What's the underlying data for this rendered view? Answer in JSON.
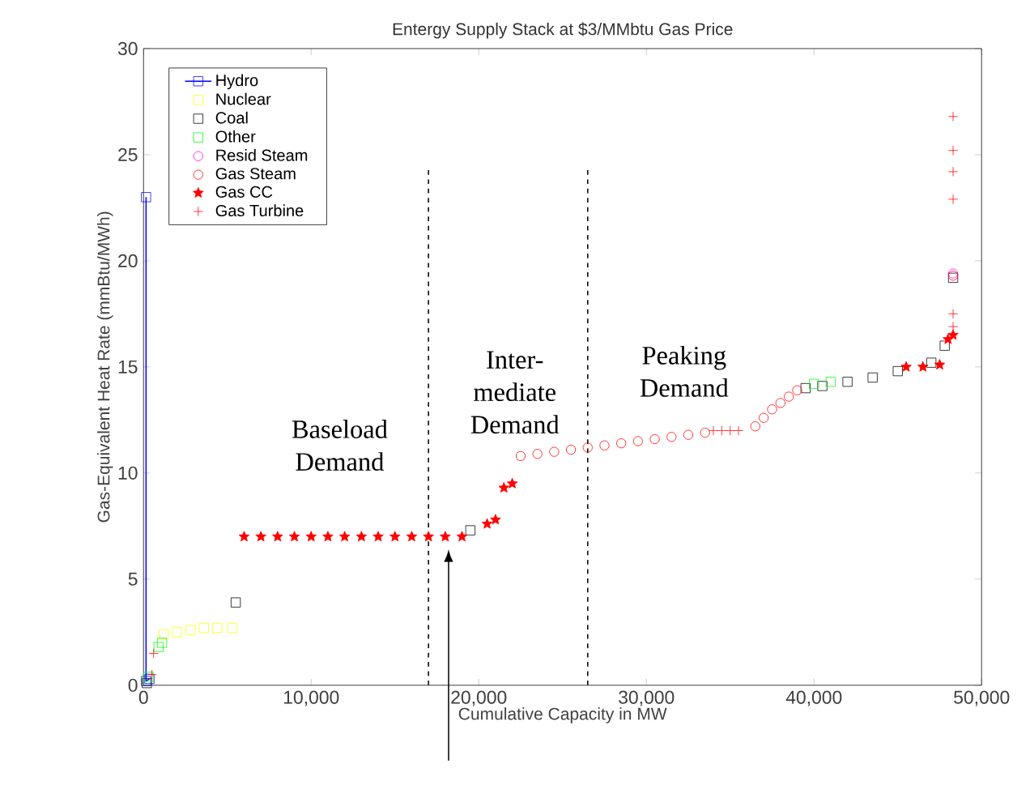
{
  "chart_data": {
    "type": "scatter",
    "title": "Entergy Supply Stack at $3/MMbtu Gas Price",
    "xlabel": "Cumulative Capacity in MW",
    "ylabel": "Gas-Equivalent Heat Rate (mmBtu/MWh)",
    "xlim": [
      0,
      50000
    ],
    "ylim": [
      0,
      30
    ],
    "xticks": [
      0,
      {
        "value": 10000,
        "label": "10,000"
      },
      {
        "value": 20000,
        "label": "20,000"
      },
      {
        "value": 30000,
        "label": "30,000"
      },
      {
        "value": 40000,
        "label": "40,000"
      },
      {
        "value": 50000,
        "label": "50,000"
      }
    ],
    "yticks": [
      0,
      5,
      10,
      15,
      20,
      25,
      30
    ],
    "grid": false,
    "legend": "top left",
    "series": [
      {
        "name": "Hydro",
        "type": "line",
        "marker": "square",
        "color": "#0000ff",
        "x": [
          150,
          150,
          350
        ],
        "values": [
          23,
          0.2,
          0.3
        ]
      },
      {
        "name": "Nuclear",
        "marker": "square",
        "color": "#ffff00",
        "x": [
          1200,
          2000,
          2800,
          3600,
          4400,
          5300
        ],
        "values": [
          2.4,
          2.5,
          2.6,
          2.7,
          2.7,
          2.7
        ]
      },
      {
        "name": "Coal",
        "marker": "square",
        "color": "#000000",
        "x": [
          200,
          5500,
          19500,
          39500,
          40500,
          42000,
          43500,
          45000,
          47000,
          47800,
          48300
        ],
        "values": [
          0.1,
          3.9,
          7.3,
          14,
          14.1,
          14.3,
          14.5,
          14.8,
          15.2,
          16,
          19.2
        ]
      },
      {
        "name": "Other",
        "marker": "square",
        "color": "#00ff00",
        "x": [
          300,
          900,
          1100,
          40000,
          41000
        ],
        "values": [
          0.4,
          1.8,
          2.0,
          14.2,
          14.3
        ]
      },
      {
        "name": "Resid Steam",
        "marker": "circle",
        "color": "#ff00ff",
        "x": [
          48300
        ],
        "values": [
          19.4
        ]
      },
      {
        "name": "Gas Steam",
        "marker": "circle",
        "color": "#ff0000",
        "x": [
          22500,
          23500,
          24500,
          25500,
          26500,
          27500,
          28500,
          29500,
          30500,
          31500,
          32500,
          33500,
          36500,
          37000,
          37500,
          38000,
          38500,
          39000,
          48300
        ],
        "values": [
          10.8,
          10.9,
          11.0,
          11.1,
          11.2,
          11.3,
          11.4,
          11.5,
          11.6,
          11.7,
          11.8,
          11.9,
          12.2,
          12.6,
          13.0,
          13.3,
          13.6,
          13.9,
          19.3
        ]
      },
      {
        "name": "Gas CC",
        "marker": "star",
        "color": "#ff0000",
        "x": [
          6000,
          7000,
          8000,
          9000,
          10000,
          11000,
          12000,
          13000,
          14000,
          15000,
          16000,
          17000,
          18000,
          19000,
          20500,
          21000,
          21500,
          22000,
          45500,
          46500,
          47500,
          48000,
          48300
        ],
        "values": [
          7.0,
          7.0,
          7.0,
          7.0,
          7.0,
          7.0,
          7.0,
          7.0,
          7.0,
          7.0,
          7.0,
          7.0,
          7.0,
          7.0,
          7.6,
          7.8,
          9.3,
          9.5,
          15.0,
          15.0,
          15.1,
          16.3,
          16.5
        ]
      },
      {
        "name": "Gas Turbine",
        "marker": "cross",
        "color": "#ff0000",
        "x": [
          500,
          600,
          34000,
          34500,
          35000,
          35500,
          48300,
          48300,
          48300,
          48300,
          48300,
          48300
        ],
        "values": [
          0.5,
          1.5,
          12,
          12,
          12,
          12,
          16.9,
          17.5,
          22.9,
          24.2,
          25.2,
          26.8
        ]
      }
    ],
    "ref_lines": [
      {
        "axis": "x",
        "value": 17000,
        "line_style": "dashed",
        "color": "#000000"
      },
      {
        "axis": "x",
        "value": 26500,
        "line_style": "dashed",
        "color": "#000000"
      }
    ],
    "annotations": [
      "Baseload Demand",
      "Inter- mediate Demand",
      "Peaking Demand"
    ]
  }
}
